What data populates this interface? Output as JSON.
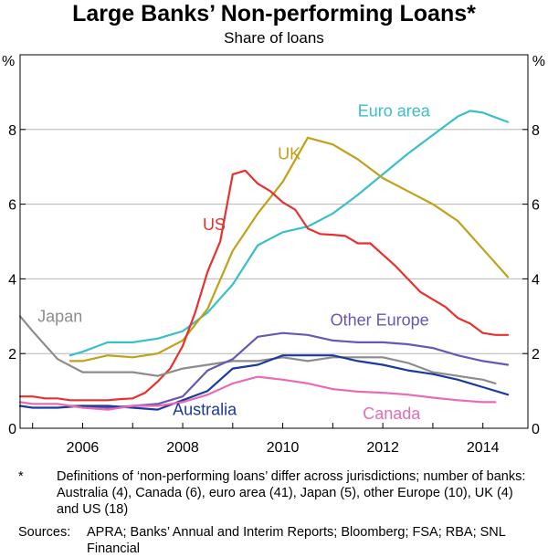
{
  "chart_data": {
    "type": "line",
    "title": "Large Banks’ Non-performing Loans*",
    "subtitle": "Share of loans",
    "ylabel": "%",
    "xlabel": "",
    "xlim": [
      2004.75,
      2014.9
    ],
    "ylim": [
      0,
      10
    ],
    "x_ticks": [
      2006,
      2008,
      2010,
      2012,
      2014
    ],
    "y_ticks": [
      0,
      2,
      4,
      6,
      8
    ],
    "grid": "horizontal",
    "series": [
      {
        "name": "Euro area",
        "color": "#38bfc9",
        "x": [
          2005.75,
          2006.0,
          2006.5,
          2007.0,
          2007.5,
          2008.0,
          2008.5,
          2009.0,
          2009.5,
          2010.0,
          2010.5,
          2011.0,
          2011.5,
          2012.0,
          2012.5,
          2013.0,
          2013.5,
          2013.75,
          2014.0,
          2014.5
        ],
        "y": [
          1.95,
          2.05,
          2.3,
          2.3,
          2.4,
          2.6,
          3.1,
          3.85,
          4.9,
          5.25,
          5.4,
          5.75,
          6.25,
          6.8,
          7.35,
          7.85,
          8.35,
          8.5,
          8.45,
          8.2
        ]
      },
      {
        "name": "UK",
        "color": "#c0a117",
        "x": [
          2005.75,
          2006.0,
          2006.5,
          2007.0,
          2007.5,
          2008.0,
          2008.5,
          2009.0,
          2009.5,
          2010.0,
          2010.5,
          2011.0,
          2011.5,
          2012.0,
          2012.5,
          2013.0,
          2013.5,
          2014.0,
          2014.5
        ],
        "y": [
          1.8,
          1.8,
          1.95,
          1.9,
          2.0,
          2.35,
          3.2,
          4.75,
          5.75,
          6.6,
          7.78,
          7.6,
          7.2,
          6.7,
          6.35,
          6.0,
          5.55,
          4.8,
          4.05
        ]
      },
      {
        "name": "US",
        "color": "#e8312e",
        "x": [
          2004.75,
          2005.0,
          2005.25,
          2005.5,
          2005.75,
          2006.0,
          2006.25,
          2006.5,
          2006.75,
          2007.0,
          2007.25,
          2007.5,
          2007.75,
          2008.0,
          2008.25,
          2008.5,
          2008.75,
          2009.0,
          2009.25,
          2009.5,
          2009.75,
          2010.0,
          2010.25,
          2010.5,
          2010.75,
          2011.0,
          2011.25,
          2011.5,
          2011.75,
          2012.0,
          2012.25,
          2012.5,
          2012.75,
          2013.0,
          2013.25,
          2013.5,
          2013.75,
          2014.0,
          2014.25,
          2014.5
        ],
        "y": [
          0.85,
          0.85,
          0.8,
          0.8,
          0.75,
          0.75,
          0.75,
          0.75,
          0.78,
          0.8,
          0.95,
          1.25,
          1.6,
          2.2,
          3.1,
          4.2,
          5.0,
          6.8,
          6.9,
          6.55,
          6.35,
          6.05,
          5.85,
          5.35,
          5.2,
          5.18,
          5.15,
          4.95,
          4.95,
          4.65,
          4.35,
          4.0,
          3.65,
          3.45,
          3.25,
          2.95,
          2.8,
          2.55,
          2.5,
          2.5
        ]
      },
      {
        "name": "Japan",
        "color": "#8c8c8c",
        "x": [
          2004.75,
          2005.0,
          2005.5,
          2006.0,
          2006.5,
          2007.0,
          2007.5,
          2008.0,
          2008.5,
          2009.0,
          2009.5,
          2010.0,
          2010.5,
          2011.0,
          2011.5,
          2012.0,
          2012.5,
          2013.0,
          2013.5,
          2014.0,
          2014.25
        ],
        "y": [
          3.0,
          2.6,
          1.85,
          1.5,
          1.5,
          1.5,
          1.4,
          1.6,
          1.7,
          1.8,
          1.8,
          1.9,
          1.8,
          1.9,
          1.9,
          1.9,
          1.75,
          1.5,
          1.4,
          1.3,
          1.2
        ]
      },
      {
        "name": "Other Europe",
        "color": "#6b55b5",
        "x": [
          2005.75,
          2006.0,
          2006.5,
          2007.0,
          2007.5,
          2008.0,
          2008.5,
          2009.0,
          2009.5,
          2010.0,
          2010.5,
          2011.0,
          2011.5,
          2012.0,
          2012.5,
          2013.0,
          2013.5,
          2014.0,
          2014.5
        ],
        "y": [
          0.6,
          0.6,
          0.55,
          0.6,
          0.65,
          0.85,
          1.55,
          1.85,
          2.45,
          2.55,
          2.5,
          2.35,
          2.3,
          2.3,
          2.25,
          2.15,
          1.95,
          1.8,
          1.7
        ]
      },
      {
        "name": "Australia",
        "color": "#1c3a9e",
        "x": [
          2004.75,
          2005.0,
          2005.5,
          2006.0,
          2006.5,
          2007.0,
          2007.5,
          2008.0,
          2008.5,
          2009.0,
          2009.5,
          2010.0,
          2010.5,
          2011.0,
          2011.5,
          2012.0,
          2012.5,
          2013.0,
          2013.5,
          2014.0,
          2014.5
        ],
        "y": [
          0.6,
          0.55,
          0.55,
          0.6,
          0.6,
          0.55,
          0.5,
          0.75,
          1.0,
          1.6,
          1.7,
          1.95,
          1.95,
          1.95,
          1.8,
          1.7,
          1.55,
          1.45,
          1.3,
          1.1,
          0.9
        ]
      },
      {
        "name": "Canada",
        "color": "#e86cb5",
        "x": [
          2004.75,
          2005.0,
          2005.5,
          2006.0,
          2006.5,
          2007.0,
          2007.5,
          2008.0,
          2008.5,
          2009.0,
          2009.5,
          2010.0,
          2010.5,
          2011.0,
          2011.5,
          2012.0,
          2012.5,
          2013.0,
          2013.5,
          2014.0,
          2014.25
        ],
        "y": [
          0.7,
          0.65,
          0.65,
          0.55,
          0.5,
          0.6,
          0.6,
          0.7,
          0.9,
          1.2,
          1.38,
          1.3,
          1.2,
          1.05,
          0.98,
          0.95,
          0.9,
          0.82,
          0.75,
          0.7,
          0.7
        ]
      }
    ],
    "series_labels": [
      {
        "name": "Euro area",
        "x": 2011.5,
        "y": 8.35
      },
      {
        "name": "UK",
        "x": 2009.9,
        "y": 7.2
      },
      {
        "name": "US",
        "x": 2008.4,
        "y": 5.3
      },
      {
        "name": "Japan",
        "x": 2005.1,
        "y": 2.85
      },
      {
        "name": "Other Europe",
        "x": 2010.95,
        "y": 2.75
      },
      {
        "name": "Australia",
        "x": 2007.8,
        "y": 0.35
      },
      {
        "name": "Canada",
        "x": 2011.6,
        "y": 0.25
      }
    ]
  },
  "notes": {
    "footnote_marker": "*",
    "footnote": "Definitions of ‘non-performing loans’ differ across jurisdictions; number of banks: Australia (4), Canada (6), euro area (41), Japan (5), other Europe (10), UK (4) and US (18)",
    "sources_label": "Sources:",
    "sources": "APRA; Banks’ Annual and Interim Reports; Bloomberg; FSA; RBA; SNL Financial"
  }
}
